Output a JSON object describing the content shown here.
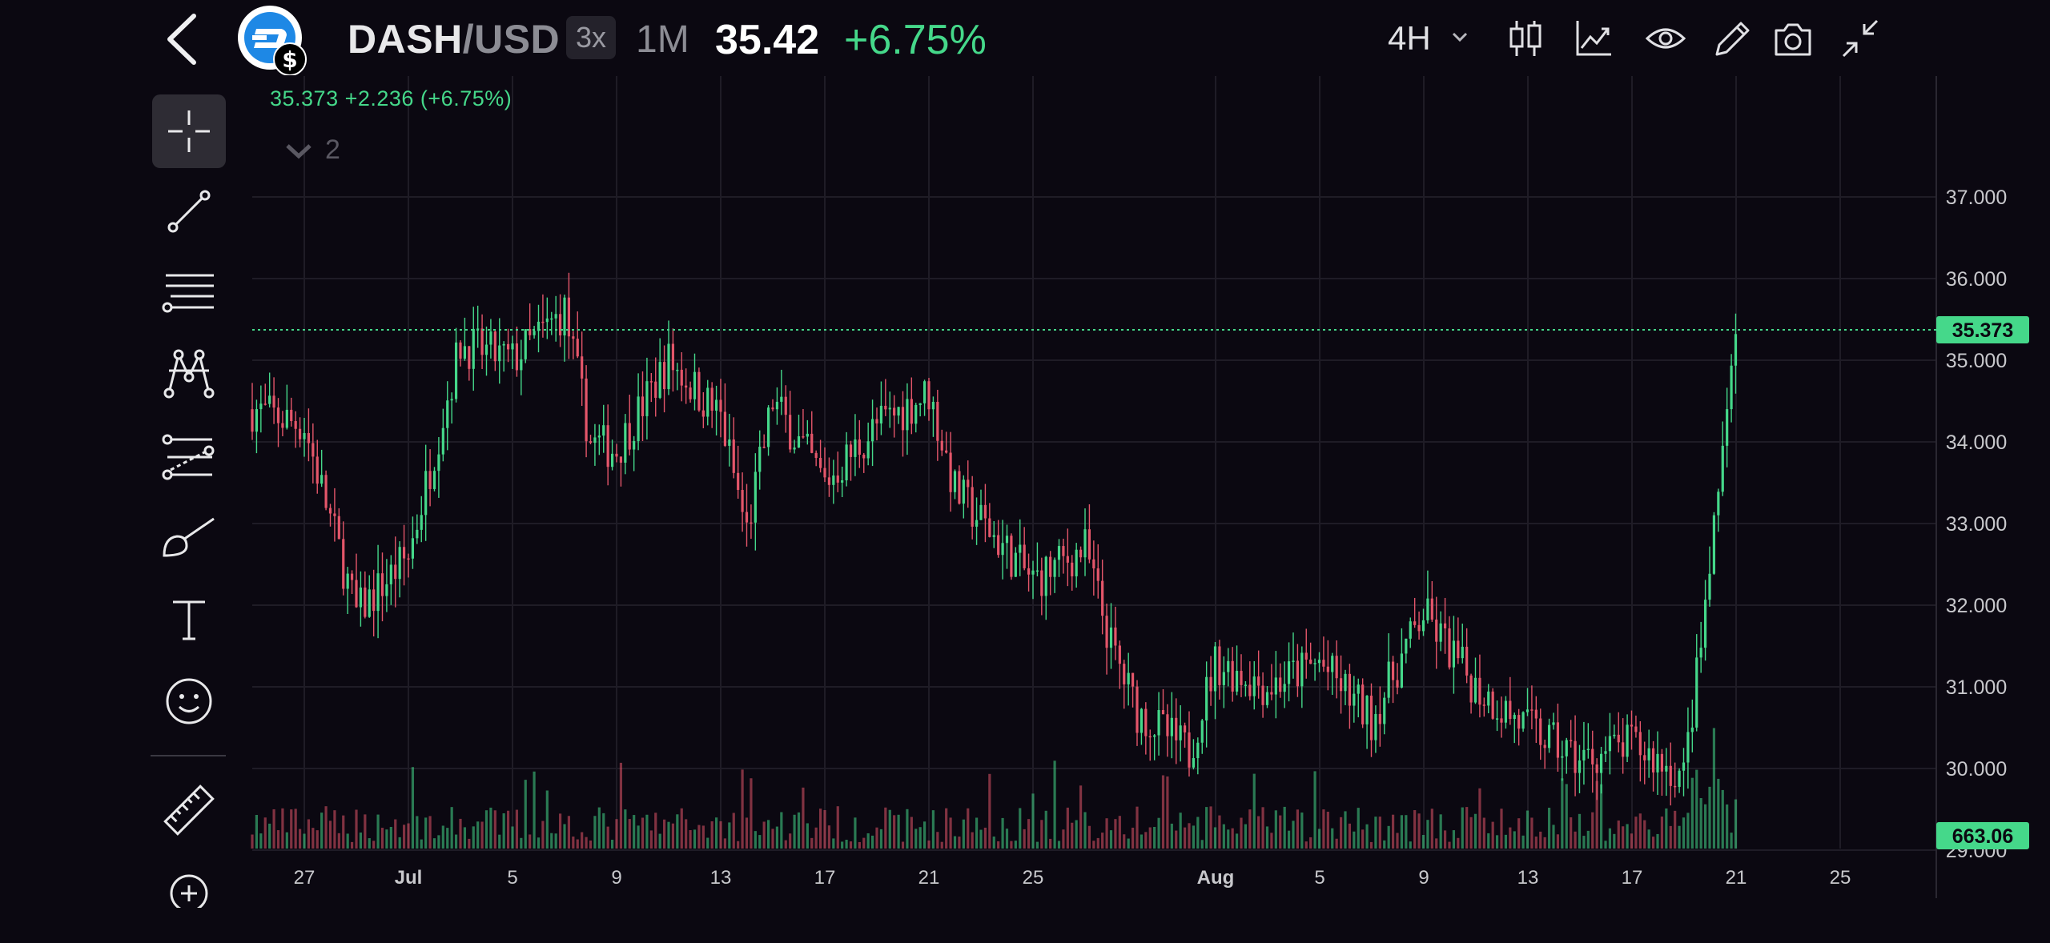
{
  "header": {
    "pair_base": "DASH",
    "pair_quote": "/USD",
    "leverage": "3x",
    "period": "1M",
    "price": "35.42",
    "change": "+6.75%",
    "timeframe": "4H",
    "icons": [
      "back-icon",
      "dash-logo-icon",
      "candles-icon",
      "indicators-icon",
      "eye-icon",
      "pencil-icon",
      "camera-icon",
      "collapse-icon"
    ]
  },
  "legend": {
    "ohlc_text": "35.373  +2.236 (+6.75%)",
    "collapsed_count": "2"
  },
  "toolbar": {
    "tools": [
      "crosshair-tool",
      "trend-line-tool",
      "fib-lines-tool",
      "pattern-tool",
      "forecast-tool",
      "brush-tool",
      "text-tool",
      "emoji-tool",
      "ruler-tool",
      "add-tool"
    ]
  },
  "colors": {
    "up": "#45d88a",
    "down": "#e4566a",
    "background": "#0b0811",
    "grid": "#1f1c26"
  },
  "chart_data": {
    "type": "candlestick",
    "y_axis_ticks": [
      "37.000",
      "36.000",
      "35.000",
      "34.000",
      "33.000",
      "32.000",
      "31.000",
      "30.000",
      "29.000"
    ],
    "ylim": [
      28.0,
      37.5
    ],
    "x_axis_ticks": [
      "27",
      "Jul",
      "5",
      "9",
      "13",
      "17",
      "21",
      "25",
      "Aug",
      "5",
      "9",
      "13",
      "17",
      "21",
      "25"
    ],
    "last_price_label": "35.373",
    "volume_label": "663.06",
    "last_price": 35.373,
    "approx_close_path": [
      {
        "x": "Jun 25",
        "y": 34.4
      },
      {
        "x": "Jun 27",
        "y": 34.2
      },
      {
        "x": "Jun 29",
        "y": 31.9
      },
      {
        "x": "Jul 1",
        "y": 32.6
      },
      {
        "x": "Jul 3",
        "y": 35.2
      },
      {
        "x": "Jul 5",
        "y": 35.0
      },
      {
        "x": "Jul 7",
        "y": 35.6
      },
      {
        "x": "Jul 8",
        "y": 34.0
      },
      {
        "x": "Jul 9",
        "y": 33.9
      },
      {
        "x": "Jul 11",
        "y": 35.0
      },
      {
        "x": "Jul 13",
        "y": 34.3
      },
      {
        "x": "Jul 14",
        "y": 32.9
      },
      {
        "x": "Jul 15",
        "y": 34.5
      },
      {
        "x": "Jul 17",
        "y": 33.5
      },
      {
        "x": "Jul 19",
        "y": 34.2
      },
      {
        "x": "Jul 21",
        "y": 34.6
      },
      {
        "x": "Jul 22",
        "y": 33.4
      },
      {
        "x": "Jul 25",
        "y": 32.3
      },
      {
        "x": "Jul 27",
        "y": 32.7
      },
      {
        "x": "Jul 28",
        "y": 31.5
      },
      {
        "x": "Jul 29",
        "y": 30.7
      },
      {
        "x": "Jul 31",
        "y": 30.2
      },
      {
        "x": "Aug 1",
        "y": 31.3
      },
      {
        "x": "Aug 3",
        "y": 31.0
      },
      {
        "x": "Aug 5",
        "y": 31.3
      },
      {
        "x": "Aug 7",
        "y": 30.6
      },
      {
        "x": "Aug 9",
        "y": 31.9
      },
      {
        "x": "Aug 11",
        "y": 31.0
      },
      {
        "x": "Aug 13",
        "y": 30.5
      },
      {
        "x": "Aug 15",
        "y": 30.1
      },
      {
        "x": "Aug 17",
        "y": 30.3
      },
      {
        "x": "Aug 19",
        "y": 29.9
      },
      {
        "x": "Aug 20",
        "y": 32.4
      },
      {
        "x": "Aug 21",
        "y": 35.37
      }
    ]
  }
}
